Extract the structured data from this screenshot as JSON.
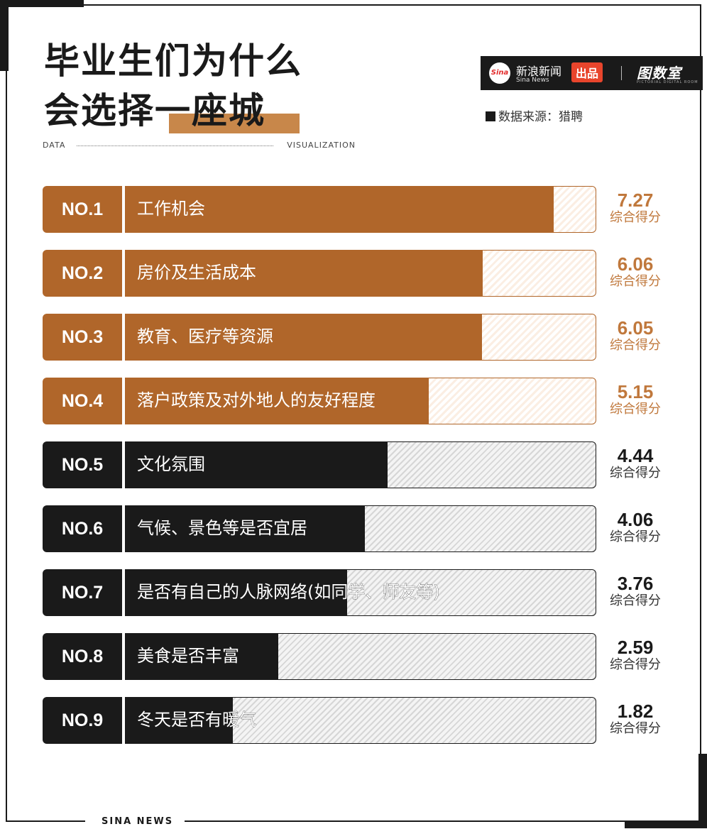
{
  "header": {
    "title_line1": "毕业生们为什么",
    "title_line2": "会选择一座城",
    "tag_left": "DATA",
    "tag_right": "VISUALIZATION",
    "source": "数据来源：猎聘",
    "footer": "SINA NEWS"
  },
  "brand": {
    "sina_logo_text": "Sina",
    "name_cn": "新浪新闻",
    "name_en": "Sina News",
    "badge": "出品",
    "partner": "图数室",
    "partner_sub": "PICTORIAL DIGITAL ROOM"
  },
  "colors": {
    "warm": "#b0662a",
    "dark": "#1a1a1a",
    "warm_text": "#c0783c",
    "title_highlight": "#c8874a"
  },
  "chart_data": {
    "type": "bar",
    "orientation": "horizontal",
    "xlim": [
      0,
      8
    ],
    "value_caption": "综合得分",
    "categories": [
      "工作机会",
      "房价及生活成本",
      "教育、医疗等资源",
      "落户政策及对外地人的友好程度",
      "文化氛围",
      "气候、景色等是否宜居",
      "是否有自己的人脉网络(如同学、师友等)",
      "美食是否丰富",
      "冬天是否有暖气"
    ],
    "ranks": [
      "NO.1",
      "NO.2",
      "NO.3",
      "NO.4",
      "NO.5",
      "NO.6",
      "NO.7",
      "NO.8",
      "NO.9"
    ],
    "values": [
      7.27,
      6.06,
      6.05,
      5.15,
      4.44,
      4.06,
      3.76,
      2.59,
      1.82
    ],
    "value_labels": [
      "7.27",
      "6.06",
      "6.05",
      "5.15",
      "4.44",
      "4.06",
      "3.76",
      "2.59",
      "1.82"
    ],
    "highlight_top": 4
  }
}
